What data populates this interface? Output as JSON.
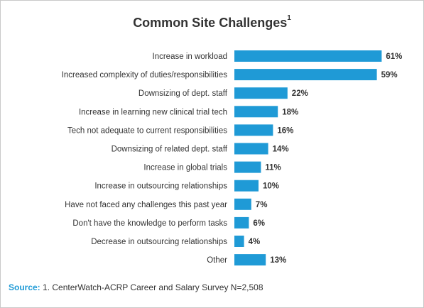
{
  "chart_data": {
    "type": "bar",
    "orientation": "horizontal",
    "title": "Common Site Challenges",
    "title_superscript": "1",
    "categories": [
      "Increase in workload",
      "Increased complexity of duties/responsibilities",
      "Downsizing of dept. staff",
      "Increase in learning new clinical trial tech",
      "Tech not adequate to current responsibilities",
      "Downsizing of related dept. staff",
      "Increase in global trials",
      "Increase in outsourcing relationships",
      "Have not faced any challenges this past year",
      "Don't have the knowledge to perform tasks",
      "Decrease in outsourcing relationships",
      "Other"
    ],
    "values": [
      61,
      59,
      22,
      18,
      16,
      14,
      11,
      10,
      7,
      6,
      4,
      13
    ],
    "value_labels": [
      "61%",
      "59%",
      "22%",
      "18%",
      "16%",
      "14%",
      "11%",
      "10%",
      "7%",
      "6%",
      "4%",
      "13%"
    ],
    "grid": false,
    "bar_color": "#1f9ad6"
  },
  "source": {
    "label": "Source:",
    "text": "1.  CenterWatch-ACRP Career and Salary Survey N=2,508"
  }
}
